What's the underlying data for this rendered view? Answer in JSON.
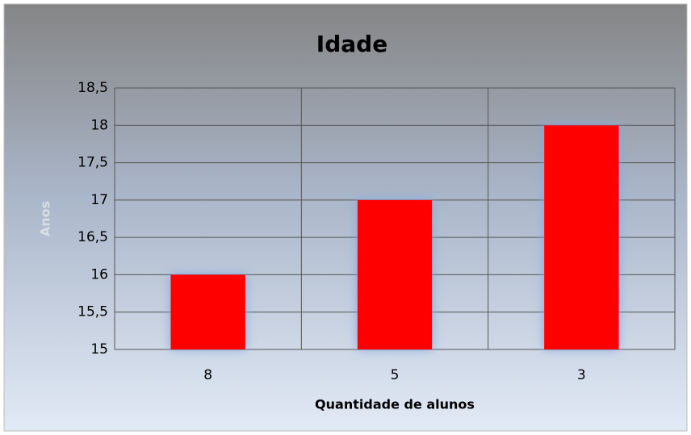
{
  "chart_data": {
    "type": "bar",
    "title": "Idade",
    "categories": [
      "8",
      "5",
      "3"
    ],
    "values": [
      16,
      17,
      18
    ],
    "color": "#ff0000",
    "ylim": [
      15,
      18.5
    ],
    "yticks": [
      15,
      {
        "value": 15.5,
        "label": "15,5"
      },
      16,
      {
        "value": 16.5,
        "label": "16,5"
      },
      17,
      {
        "value": 17.5,
        "label": "17,5"
      },
      18,
      {
        "value": 18.5,
        "label": "18,5"
      }
    ],
    "xlabel": "Quantidade de alunos",
    "ylabel": "Anos",
    "grid": true
  }
}
